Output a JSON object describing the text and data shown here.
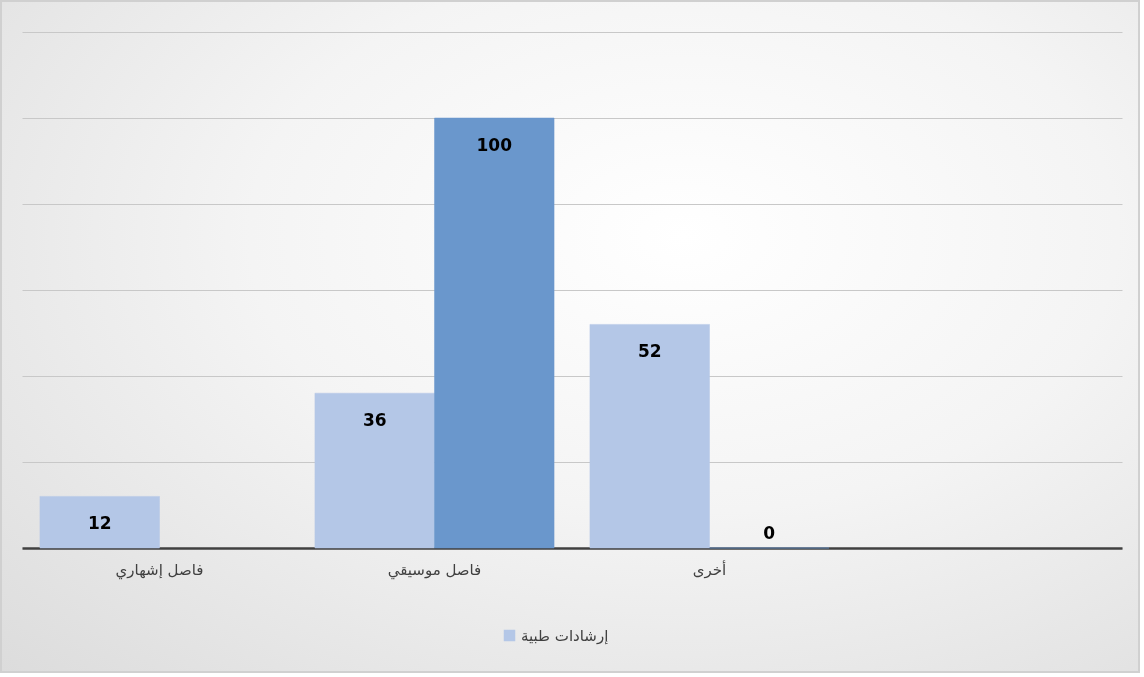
{
  "chart_data": {
    "type": "bar",
    "categories": [
      "فاصل إشهاري",
      "فاصل موسيقي",
      "أخرى",
      null
    ],
    "series": [
      {
        "name": "إرشادات طبية",
        "color": "#b4c7e7",
        "values": [
          12,
          36,
          52,
          null
        ]
      },
      {
        "color": "#6a97cc",
        "values": [
          null,
          100,
          0,
          null
        ]
      }
    ],
    "ylim": [
      0,
      120
    ],
    "yticks": [
      {
        "value": 0,
        "label": null
      },
      {
        "value": 20,
        "label": null
      },
      {
        "value": 40,
        "label": null
      },
      {
        "value": 60,
        "label": null
      },
      {
        "value": 80,
        "label": null
      },
      {
        "value": 100,
        "label": null
      },
      {
        "value": 120,
        "label": null
      }
    ],
    "tick_labels": "x",
    "grid": "y",
    "legend": "bottom",
    "data_labels": true
  }
}
